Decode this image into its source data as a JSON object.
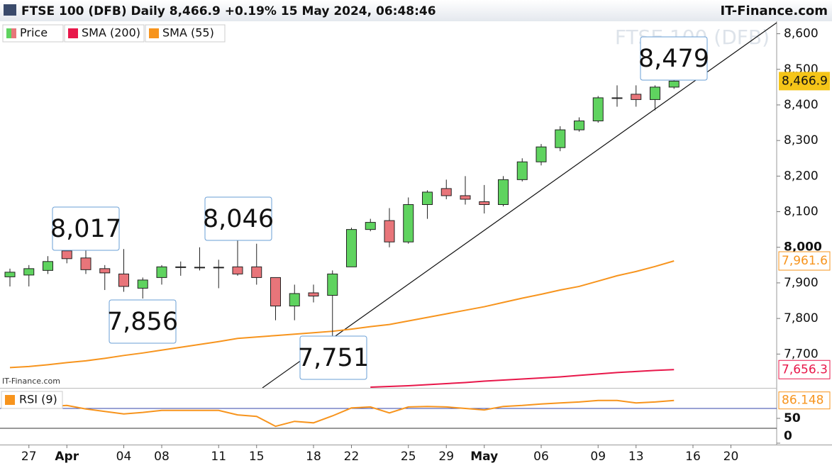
{
  "chart_data": {
    "type": "candlestick",
    "title": "FTSE 100 (DFB) Daily 8,466.9 +0.19% 15 May 2024, 06:48:46",
    "brand": "IT-Finance.com",
    "watermark": "FTSE 100 (DFB)",
    "pane_brand": "IT-Finance.com",
    "price_name": "Price",
    "up_color": "#5fd35f",
    "down_color": "#e8757a",
    "categories": [
      null,
      "27",
      null,
      "Apr",
      null,
      null,
      "04",
      null,
      "08",
      null,
      null,
      "11",
      null,
      "15",
      null,
      null,
      "18",
      null,
      "22",
      null,
      null,
      "25",
      null,
      "29",
      null,
      "May",
      null,
      null,
      "06",
      null,
      null,
      "09",
      null,
      "13",
      null,
      null,
      "16",
      null,
      "20",
      null
    ],
    "open": [
      7917,
      7922,
      7935,
      7990,
      7970,
      7940,
      7925,
      7885,
      7915,
      7945,
      7944,
      7944,
      7945,
      7945,
      7915,
      7835,
      7872,
      7865,
      7945,
      8050,
      8075,
      8015,
      8120,
      8165,
      8145,
      8128,
      8120,
      8190,
      8240,
      8280,
      8330,
      8355,
      8420,
      8430,
      8415,
      8450,
      null,
      null,
      null,
      null
    ],
    "high": [
      7940,
      7950,
      7975,
      8010,
      8017,
      7950,
      7995,
      7915,
      7950,
      7960,
      8000,
      7965,
      8046,
      8010,
      7915,
      7895,
      7895,
      7935,
      8055,
      8080,
      8110,
      8140,
      8160,
      8190,
      8200,
      8175,
      8200,
      8250,
      8290,
      8340,
      8365,
      8425,
      8455,
      8455,
      8455,
      8479,
      null,
      null,
      null,
      null
    ],
    "low": [
      7890,
      7890,
      7925,
      7955,
      7925,
      7880,
      7875,
      7856,
      7895,
      7920,
      7935,
      7885,
      7920,
      7895,
      7795,
      7795,
      7845,
      7751,
      7945,
      8045,
      8000,
      8010,
      8080,
      8135,
      8120,
      8095,
      8115,
      8185,
      8230,
      8270,
      8325,
      8350,
      8395,
      8395,
      8385,
      8445,
      null,
      null,
      null,
      null
    ],
    "close": [
      7930,
      7940,
      7960,
      7968,
      7937,
      7928,
      7890,
      7908,
      7945,
      7945,
      7944,
      7944,
      7925,
      7915,
      7835,
      7870,
      7863,
      7925,
      8050,
      8070,
      8015,
      8120,
      8155,
      8145,
      8135,
      8120,
      8190,
      8240,
      8282,
      8330,
      8355,
      8420,
      8420,
      8415,
      8450,
      8466.9,
      null,
      null,
      null,
      null
    ],
    "last_value_label": "8,466.9",
    "last_value_color": "#f5c518",
    "ylim": [
      7605,
      8635
    ],
    "yticks": [
      {
        "value": 7700,
        "label": "7,700"
      },
      {
        "value": 7800,
        "label": "7,800"
      },
      {
        "value": 7900,
        "label": "7,900"
      },
      {
        "value": 8000,
        "label": "8,000"
      },
      {
        "value": 8100,
        "label": "8,100"
      },
      {
        "value": 8200,
        "label": "8,200"
      },
      {
        "value": 8300,
        "label": "8,300"
      },
      {
        "value": 8400,
        "label": "8,400"
      },
      {
        "value": 8500,
        "label": "8,500"
      },
      {
        "value": 8600,
        "label": "8,600"
      }
    ],
    "series": [
      {
        "name": "SMA (200)",
        "color": "#e8174a",
        "last_label": "7,656.3",
        "values": [
          null,
          null,
          null,
          null,
          null,
          null,
          null,
          null,
          null,
          null,
          null,
          null,
          null,
          null,
          null,
          null,
          null,
          null,
          null,
          7607,
          7609,
          7611,
          7614,
          7617,
          7620,
          7624,
          7627,
          7630,
          7633,
          7636,
          7640,
          7644,
          7648,
          7651,
          7654,
          7656.3,
          null,
          null,
          null,
          null
        ]
      },
      {
        "name": "SMA (55)",
        "color": "#f7941d",
        "last_label": "7,961.6",
        "values": [
          7662,
          7665,
          7670,
          7676,
          7681,
          7688,
          7696,
          7703,
          7711,
          7719,
          7727,
          7735,
          7744,
          7748,
          7752,
          7756,
          7760,
          7764,
          7770,
          7777,
          7783,
          7793,
          7803,
          7813,
          7823,
          7833,
          7845,
          7857,
          7868,
          7880,
          7890,
          7905,
          7920,
          7932,
          7946,
          7961.6,
          null,
          null,
          null,
          null
        ]
      }
    ],
    "annotations": [
      {
        "value": 8017,
        "label": "8,017"
      },
      {
        "value": 8046,
        "label": "8,046"
      },
      {
        "value": 7856,
        "label": "7,856"
      },
      {
        "value": 7751,
        "label": "7,751"
      },
      {
        "value": 8479,
        "label": "8,479"
      }
    ],
    "rsi": {
      "name": "RSI (9)",
      "color": "#f7941d",
      "ylim": [
        0,
        100
      ],
      "yticks": [
        0,
        50
      ],
      "bands": [
        30,
        70
      ],
      "last_label": "86.148",
      "values": [
        79,
        71,
        74,
        76,
        69,
        64,
        59,
        62,
        66,
        66,
        66,
        66,
        57,
        54,
        34,
        44,
        41,
        55,
        71,
        73,
        61,
        73,
        74,
        73,
        70,
        67,
        74,
        76,
        79,
        81,
        83,
        86,
        86,
        81,
        83,
        86.148,
        null,
        null,
        null,
        null
      ]
    }
  }
}
